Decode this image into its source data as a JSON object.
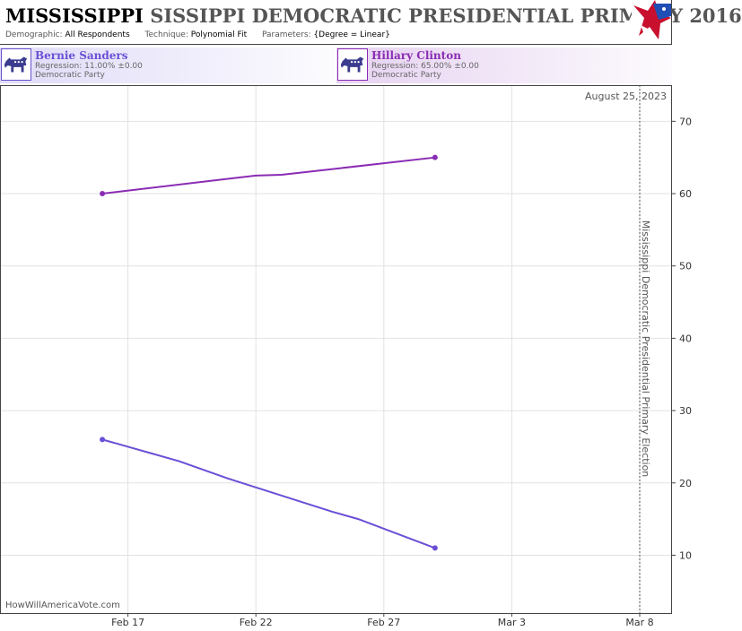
{
  "header": {
    "title_bold": "MISSISSIPPI",
    "title_rest": "SISSIPPI DEMOCRATIC PRESIDENTIAL PRIMARY 2016",
    "demographic_label": "Demographic:",
    "demographic_value": "All Respondents",
    "technique_label": "Technique:",
    "technique_value": "Polynomial Fit",
    "parameters_label": "Parameters:",
    "parameters_value": "{Degree = Linear}"
  },
  "candidates": [
    {
      "name": "Bernie Sanders",
      "regression": "Regression: 11.00% ±0.00",
      "party": "Democratic Party",
      "color": "#6a4fd6"
    },
    {
      "name": "Hillary Clinton",
      "regression": "Regression: 65.00% ±0.00",
      "party": "Democratic Party",
      "color": "#8a2bb5"
    }
  ],
  "chart_data": {
    "type": "line",
    "date_label": "August 25, 2023",
    "election_label": "Mississippi Democratic Presidential Primary Election",
    "watermark": "HowWillAmericaVote.com",
    "x_ticks": [
      "Feb 17",
      "Feb 22",
      "Feb 27",
      "Mar 3",
      "Mar 8"
    ],
    "y_ticks": [
      10,
      20,
      30,
      40,
      50,
      60,
      70
    ],
    "ylim": [
      2,
      75
    ],
    "xlim": [
      "2016-02-12",
      "2016-03-08"
    ],
    "election_date": "2016-03-08",
    "grid": true,
    "series": [
      {
        "name": "Bernie Sanders",
        "color": "#6a4fd6",
        "points": [
          [
            "2016-02-16",
            26
          ],
          [
            "2016-02-18",
            24
          ],
          [
            "2016-02-19",
            23
          ],
          [
            "2016-02-21",
            20.5
          ],
          [
            "2016-02-25",
            16
          ],
          [
            "2016-02-26",
            15
          ],
          [
            "2016-02-29",
            11
          ]
        ]
      },
      {
        "name": "Hillary Clinton",
        "color": "#8a2bb5",
        "points": [
          [
            "2016-02-16",
            60
          ],
          [
            "2016-02-22",
            62.5
          ],
          [
            "2016-02-23",
            62.6
          ],
          [
            "2016-02-29",
            65
          ]
        ]
      }
    ]
  }
}
